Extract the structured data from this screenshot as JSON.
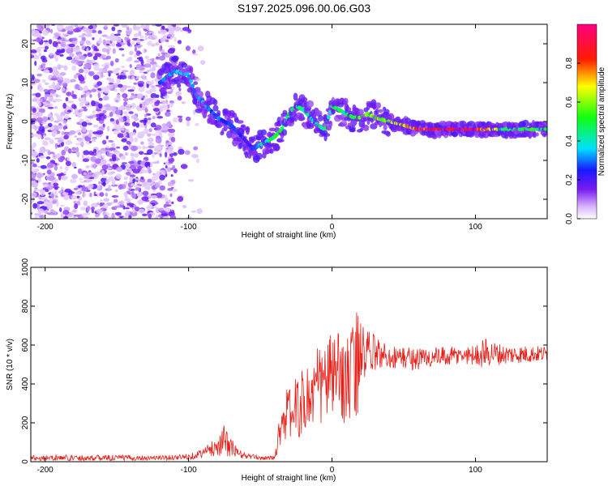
{
  "title": "S197.2025.096.00.06.G03",
  "colors": {
    "axis": "#000000",
    "snr_line": "#e8201a",
    "background": "#ffffff"
  },
  "chart_data": [
    {
      "type": "heatmap",
      "panel": "top",
      "xlabel": "Height of straight line (km)",
      "ylabel": "Frequency (Hz)",
      "xlim": [
        -210,
        150
      ],
      "ylim": [
        -25,
        25
      ],
      "x_ticks": [
        "-200",
        "-100",
        "0",
        "100"
      ],
      "y_ticks": [
        "20",
        "10",
        "0",
        "-10",
        "-20"
      ],
      "colorbar": {
        "label": "Normalized spectral amplitude",
        "range": [
          0,
          1
        ],
        "ticks": [
          "0.0",
          "0.2",
          "0.4",
          "0.6",
          "0.8"
        ],
        "colormap": "rainbow (white-purple-blue-cyan-green-yellow-red-magenta)"
      },
      "ridge": {
        "description": "dominant frequency vs height",
        "x": [
          -120,
          -110,
          -100,
          -95,
          -90,
          -85,
          -80,
          -75,
          -70,
          -65,
          -60,
          -55,
          -50,
          -45,
          -40,
          -35,
          -30,
          -25,
          -20,
          -15,
          -10,
          -5,
          0,
          5,
          10,
          15,
          20,
          25,
          30,
          40,
          50,
          60,
          80,
          100,
          120,
          150
        ],
        "y": [
          10,
          13,
          12,
          7,
          5,
          3,
          1,
          0,
          -1,
          -3,
          -5,
          -7,
          -6,
          -5,
          -4,
          -2,
          2,
          4,
          3,
          1,
          -1,
          -2,
          4,
          3,
          2,
          1,
          1,
          2,
          1,
          0,
          -1,
          -2,
          -2,
          -2,
          -2,
          -2
        ],
        "amplitude": [
          0.3,
          0.35,
          0.35,
          0.3,
          0.35,
          0.3,
          0.3,
          0.25,
          0.3,
          0.25,
          0.2,
          0.25,
          0.4,
          0.45,
          0.5,
          0.5,
          0.45,
          0.5,
          0.45,
          0.4,
          0.45,
          0.45,
          0.45,
          0.5,
          0.45,
          0.5,
          0.55,
          0.6,
          0.6,
          0.65,
          0.7,
          0.85,
          0.95,
          0.9,
          0.5,
          0.5
        ]
      }
    },
    {
      "type": "line",
      "panel": "bottom",
      "xlabel": "Height of straight line (km)",
      "ylabel": "SNR (10 * v/v)",
      "xlim": [
        -210,
        150
      ],
      "ylim": [
        0,
        1000
      ],
      "x_ticks": [
        "-200",
        "-100",
        "0",
        "100"
      ],
      "y_ticks": [
        "0",
        "200",
        "400",
        "600",
        "800",
        "1000"
      ],
      "envelope": {
        "description": "approximate mean SNR and fluctuation amplitude vs height",
        "x": [
          -210,
          -150,
          -120,
          -100,
          -90,
          -80,
          -75,
          -70,
          -65,
          -60,
          -50,
          -40,
          -35,
          -30,
          -20,
          -10,
          0,
          10,
          15,
          18,
          20,
          25,
          30,
          40,
          60,
          80,
          100,
          105,
          110,
          120,
          150
        ],
        "mean": [
          20,
          20,
          20,
          25,
          45,
          80,
          110,
          70,
          40,
          30,
          20,
          20,
          220,
          250,
          300,
          380,
          450,
          420,
          430,
          550,
          520,
          560,
          560,
          540,
          530,
          540,
          550,
          560,
          560,
          550,
          555
        ],
        "spread": [
          15,
          15,
          12,
          15,
          25,
          50,
          80,
          50,
          25,
          15,
          10,
          10,
          120,
          140,
          180,
          220,
          220,
          230,
          280,
          300,
          200,
          120,
          90,
          60,
          60,
          50,
          50,
          80,
          70,
          50,
          40
        ]
      }
    }
  ]
}
